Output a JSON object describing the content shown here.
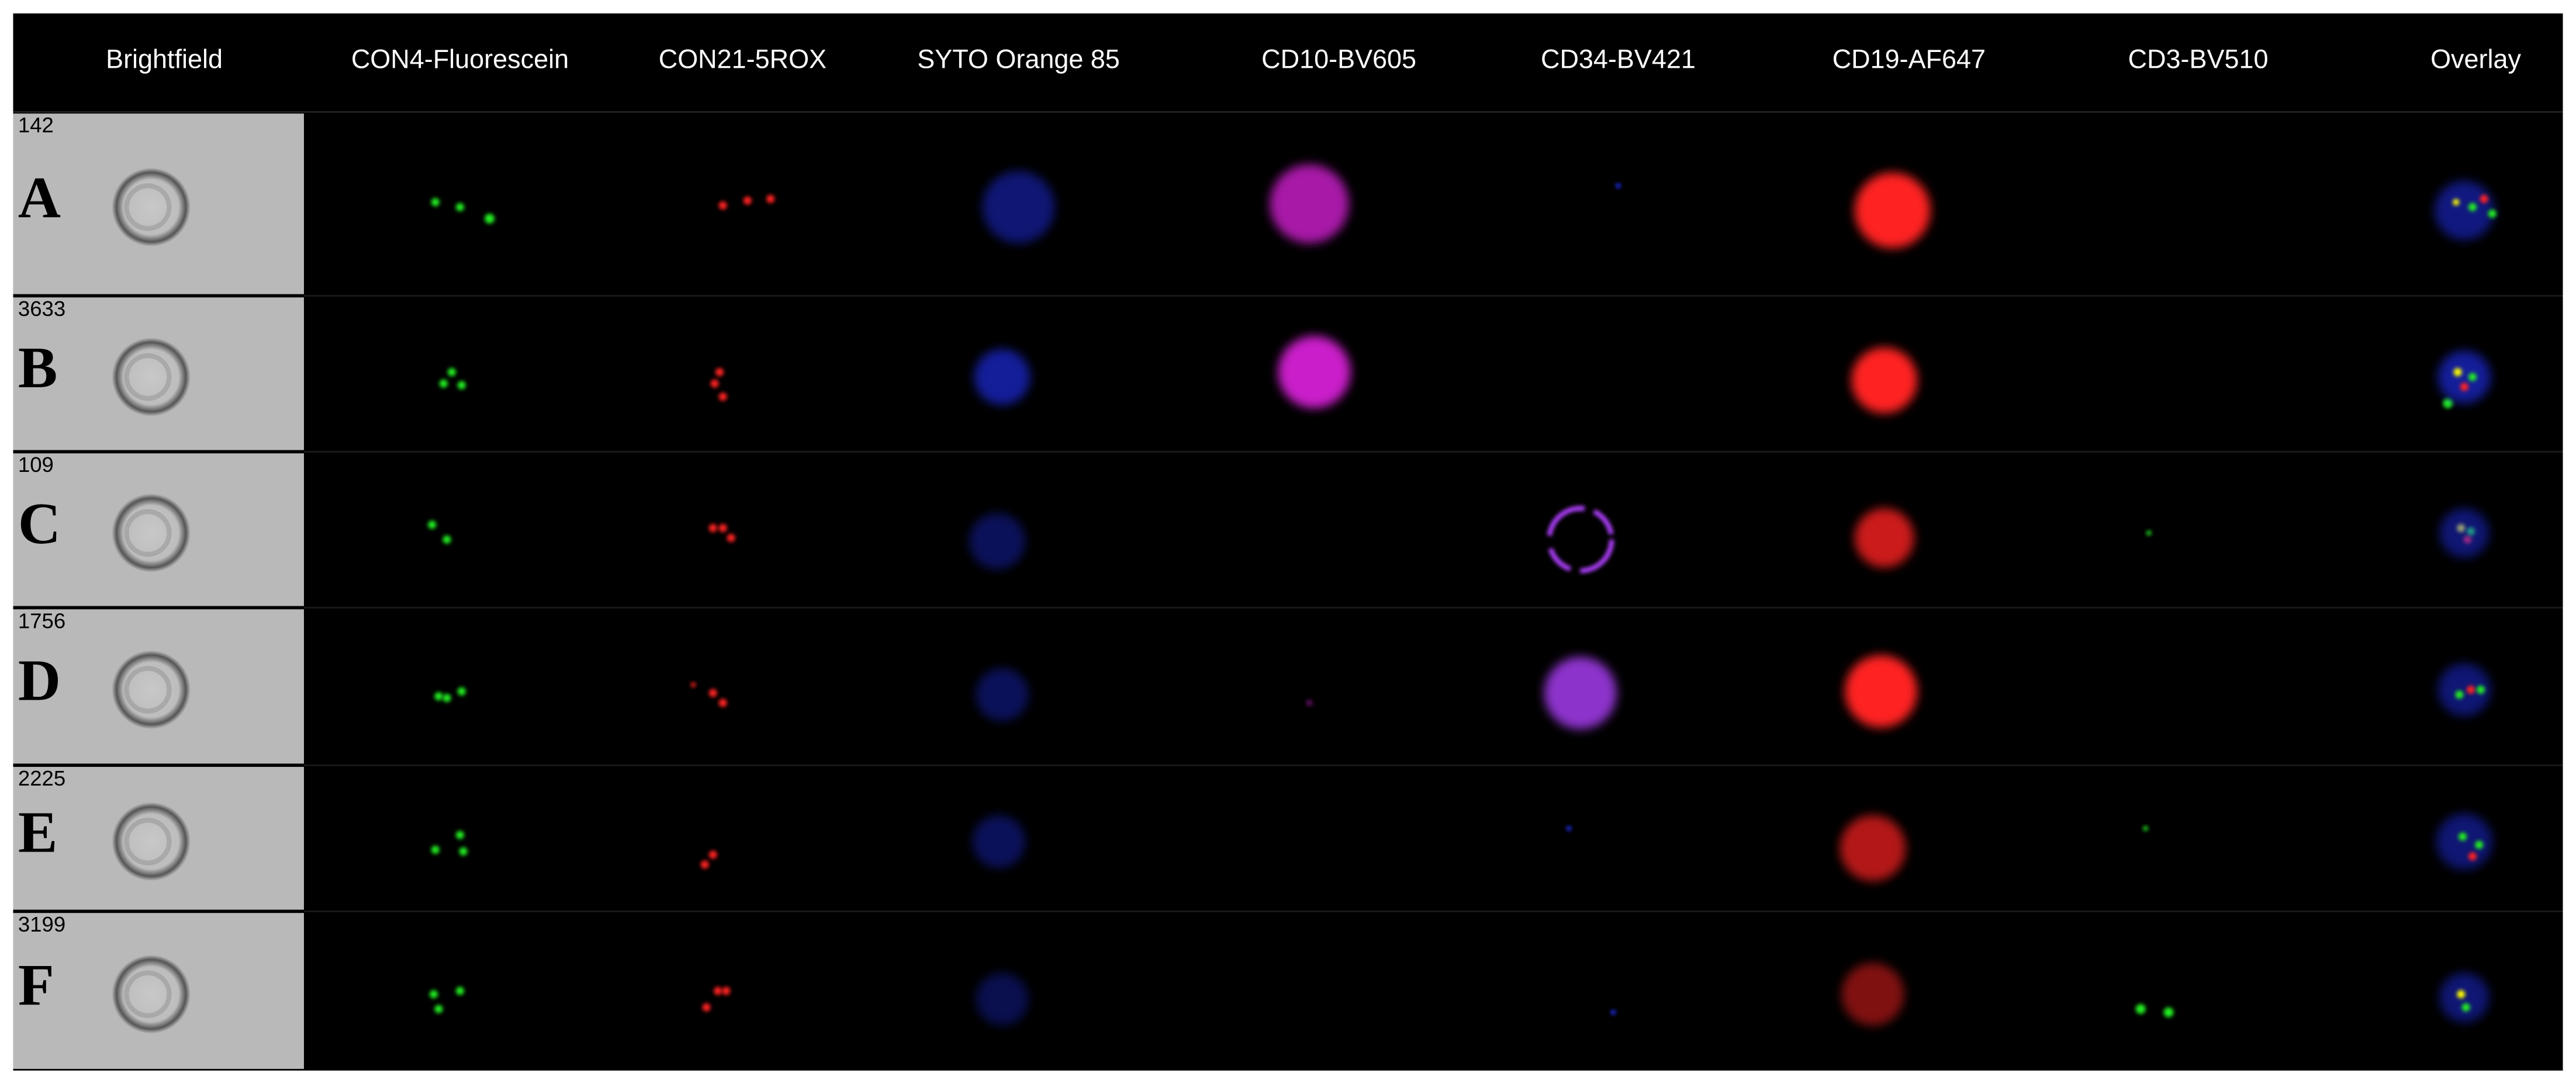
{
  "columns": [
    "Brightfield",
    "CON4-Fluorescein",
    "CON21-5ROX",
    "SYTO Orange 85",
    "CD10-BV605",
    "CD34-BV421",
    "CD19-AF647",
    "CD3-BV510",
    "Overlay"
  ],
  "rows": [
    {
      "id": "142",
      "label": "A"
    },
    {
      "id": "3633",
      "label": "B"
    },
    {
      "id": "109",
      "label": "C"
    },
    {
      "id": "1756",
      "label": "D"
    },
    {
      "id": "2225",
      "label": "E"
    },
    {
      "id": "3199",
      "label": "F"
    }
  ]
}
